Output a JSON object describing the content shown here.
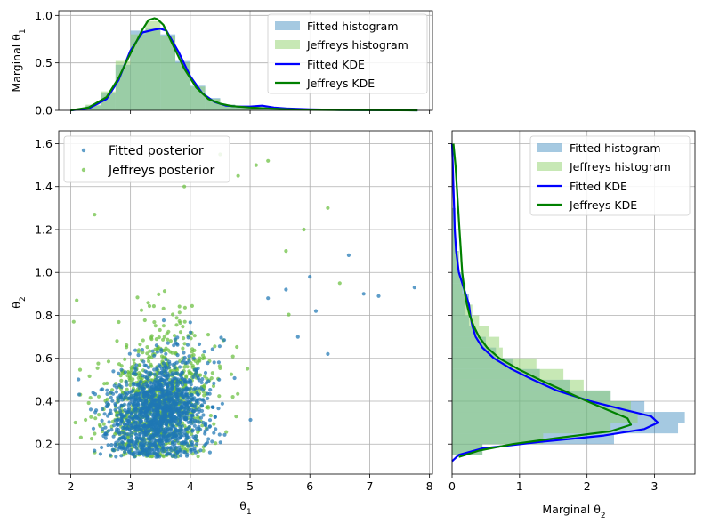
{
  "chart_data": [
    {
      "id": "top",
      "type": "area",
      "panel": "marginal-theta1",
      "ylabel": "Marginal θ1",
      "xlim": [
        1.8,
        8.05
      ],
      "ylim": [
        0,
        1.05
      ],
      "xticks": [
        2,
        3,
        4,
        5,
        6,
        7,
        8
      ],
      "xtick_labels_shown": false,
      "yticks": [
        0.0,
        0.5,
        1.0
      ],
      "ytick_labels": [
        "0.0",
        "0.5",
        "1.0"
      ],
      "legend": {
        "placement": "top-right",
        "entries": [
          {
            "label": "Fitted histogram",
            "kind": "patch",
            "color": "#1f77b4"
          },
          {
            "label": "Jeffreys histogram",
            "kind": "patch",
            "color": "#8fd16b"
          },
          {
            "label": "Fitted KDE",
            "kind": "line",
            "color": "#0000ff"
          },
          {
            "label": "Jeffreys KDE",
            "kind": "line",
            "color": "#008000"
          }
        ]
      },
      "histograms": [
        {
          "name": "Fitted histogram",
          "color": "#1f77b4",
          "bins": [
            2.0,
            2.25,
            2.5,
            2.75,
            3.0,
            3.25,
            3.5,
            3.75,
            4.0,
            4.25,
            4.5,
            4.75,
            5.0,
            5.25,
            5.5,
            5.75,
            6.0,
            6.5,
            7.0,
            7.5,
            7.8
          ],
          "values": [
            0.01,
            0.05,
            0.18,
            0.48,
            0.84,
            0.86,
            0.8,
            0.52,
            0.26,
            0.13,
            0.06,
            0.04,
            0.03,
            0.02,
            0.015,
            0.01,
            0.006,
            0.004,
            0.004,
            0.003
          ]
        },
        {
          "name": "Jeffreys histogram",
          "color": "#8fd16b",
          "bins": [
            2.0,
            2.25,
            2.5,
            2.75,
            3.0,
            3.25,
            3.5,
            3.75,
            4.0,
            4.25,
            4.5,
            4.75,
            5.0,
            5.25,
            5.5,
            5.75,
            6.0,
            6.5,
            7.0,
            7.5,
            7.8
          ],
          "values": [
            0.01,
            0.06,
            0.2,
            0.52,
            0.8,
            0.94,
            0.78,
            0.5,
            0.25,
            0.12,
            0.06,
            0.035,
            0.025,
            0.015,
            0.01,
            0.008,
            0.005,
            0.003,
            0.002,
            0.002
          ]
        }
      ],
      "series": [
        {
          "name": "Fitted KDE",
          "color": "#0000ff",
          "x": [
            2.0,
            2.3,
            2.6,
            2.8,
            3.0,
            3.2,
            3.4,
            3.5,
            3.6,
            3.8,
            4.0,
            4.2,
            4.4,
            4.6,
            4.8,
            5.0,
            5.2,
            5.4,
            5.6,
            6.0,
            6.5,
            7.0,
            7.5,
            7.8
          ],
          "y": [
            0.0,
            0.02,
            0.12,
            0.32,
            0.63,
            0.82,
            0.85,
            0.86,
            0.84,
            0.62,
            0.36,
            0.18,
            0.09,
            0.05,
            0.04,
            0.04,
            0.05,
            0.03,
            0.02,
            0.01,
            0.005,
            0.003,
            0.002,
            0.0
          ]
        },
        {
          "name": "Jeffreys KDE",
          "color": "#008000",
          "x": [
            2.0,
            2.3,
            2.6,
            2.8,
            3.0,
            3.2,
            3.3,
            3.4,
            3.45,
            3.55,
            3.7,
            3.9,
            4.1,
            4.3,
            4.5,
            4.7,
            5.0,
            5.3,
            5.6,
            6.0,
            6.5,
            7.0,
            7.5,
            7.8
          ],
          "y": [
            0.0,
            0.03,
            0.14,
            0.34,
            0.6,
            0.85,
            0.95,
            0.97,
            0.96,
            0.9,
            0.7,
            0.44,
            0.24,
            0.12,
            0.07,
            0.045,
            0.03,
            0.02,
            0.012,
            0.006,
            0.003,
            0.002,
            0.001,
            0.0
          ]
        }
      ]
    },
    {
      "id": "main",
      "type": "scatter",
      "panel": "joint-posterior",
      "xlabel": "θ1",
      "ylabel": "θ2",
      "xlim": [
        1.8,
        8.05
      ],
      "ylim": [
        0.06,
        1.66
      ],
      "xticks": [
        2,
        3,
        4,
        5,
        6,
        7,
        8
      ],
      "xtick_labels": [
        "2",
        "3",
        "4",
        "5",
        "6",
        "7",
        "8"
      ],
      "yticks": [
        0.2,
        0.4,
        0.6,
        0.8,
        1.0,
        1.2,
        1.4,
        1.6
      ],
      "ytick_labels": [
        "0.2",
        "0.4",
        "0.6",
        "0.8",
        "1.0",
        "1.2",
        "1.4",
        "1.6"
      ],
      "legend": {
        "placement": "top-left",
        "entries": [
          {
            "label": "Fitted posterior",
            "color": "#1f77b4"
          },
          {
            "label": "Jeffreys posterior",
            "color": "#6abf3f"
          }
        ]
      },
      "series": [
        {
          "name": "Jeffreys posterior",
          "color": "#6abf3f",
          "n": 900,
          "center": [
            3.45,
            0.38
          ],
          "spread": [
            0.55,
            0.19
          ],
          "seed": 11,
          "outliers": [
            [
              4.5,
              1.55
            ],
            [
              5.3,
              1.52
            ],
            [
              6.3,
              1.3
            ],
            [
              5.9,
              1.2
            ],
            [
              6.5,
              0.95
            ],
            [
              5.1,
              1.5
            ],
            [
              4.8,
              1.45
            ],
            [
              2.4,
              1.27
            ],
            [
              2.1,
              0.87
            ],
            [
              2.05,
              0.77
            ],
            [
              5.6,
              1.1
            ],
            [
              3.9,
              1.4
            ]
          ]
        },
        {
          "name": "Fitted posterior",
          "color": "#1f77b4",
          "n": 1400,
          "center": [
            3.45,
            0.34
          ],
          "spread": [
            0.5,
            0.15
          ],
          "seed": 7,
          "outliers": [
            [
              7.75,
              0.93
            ],
            [
              7.15,
              0.89
            ],
            [
              6.9,
              0.9
            ],
            [
              6.65,
              1.08
            ],
            [
              6.3,
              0.62
            ],
            [
              6.1,
              0.82
            ],
            [
              6.0,
              0.98
            ],
            [
              5.6,
              0.92
            ],
            [
              5.3,
              0.88
            ],
            [
              5.8,
              0.7
            ]
          ]
        }
      ]
    },
    {
      "id": "right",
      "type": "area",
      "panel": "marginal-theta2",
      "xlabel": "Marginal θ2",
      "xlim": [
        0,
        3.6
      ],
      "ylim": [
        0.06,
        1.66
      ],
      "xticks": [
        0,
        1,
        2,
        3
      ],
      "xtick_labels": [
        "0",
        "1",
        "2",
        "3"
      ],
      "yticks": [
        0.2,
        0.4,
        0.6,
        0.8,
        1.0,
        1.2,
        1.4,
        1.6
      ],
      "ytick_labels_shown": false,
      "legend": {
        "placement": "top-right",
        "entries": [
          {
            "label": "Fitted histogram",
            "kind": "patch",
            "color": "#1f77b4"
          },
          {
            "label": "Jeffreys histogram",
            "kind": "patch",
            "color": "#8fd16b"
          },
          {
            "label": "Fitted KDE",
            "kind": "line",
            "color": "#0000ff"
          },
          {
            "label": "Jeffreys KDE",
            "kind": "line",
            "color": "#008000"
          }
        ]
      },
      "histograms": [
        {
          "name": "Fitted histogram",
          "color": "#1f77b4",
          "bins": [
            0.15,
            0.2,
            0.25,
            0.3,
            0.35,
            0.4,
            0.45,
            0.5,
            0.55,
            0.6,
            0.65,
            0.7,
            0.75,
            0.8,
            0.85,
            0.9,
            0.95,
            1.0,
            1.1,
            1.3
          ],
          "values": [
            0.45,
            2.4,
            3.35,
            3.45,
            2.85,
            2.35,
            1.75,
            1.3,
            0.9,
            0.65,
            0.5,
            0.35,
            0.25,
            0.2,
            0.25,
            0.2,
            0.15,
            0.1,
            0.05
          ]
        },
        {
          "name": "Jeffreys histogram",
          "color": "#8fd16b",
          "bins": [
            0.15,
            0.2,
            0.25,
            0.3,
            0.35,
            0.4,
            0.45,
            0.5,
            0.55,
            0.6,
            0.65,
            0.7,
            0.75,
            0.8,
            0.85,
            0.9,
            0.95,
            1.0,
            1.1,
            1.3
          ],
          "values": [
            0.45,
            1.35,
            2.35,
            2.75,
            2.65,
            2.35,
            1.95,
            1.65,
            1.25,
            0.75,
            0.7,
            0.55,
            0.4,
            0.3,
            0.2,
            0.15,
            0.12,
            0.1,
            0.05
          ]
        }
      ],
      "series": [
        {
          "name": "Fitted KDE",
          "color": "#0000ff",
          "y": [
            0.12,
            0.15,
            0.18,
            0.21,
            0.24,
            0.27,
            0.3,
            0.33,
            0.36,
            0.4,
            0.45,
            0.5,
            0.55,
            0.6,
            0.65,
            0.7,
            0.75,
            0.8,
            0.85,
            0.9,
            0.95,
            1.0,
            1.05,
            1.1,
            1.2,
            1.3,
            1.4,
            1.5,
            1.6
          ],
          "x": [
            0.0,
            0.1,
            0.45,
            1.3,
            2.25,
            2.85,
            3.05,
            2.95,
            2.55,
            2.05,
            1.55,
            1.2,
            0.88,
            0.62,
            0.45,
            0.35,
            0.3,
            0.27,
            0.25,
            0.2,
            0.15,
            0.1,
            0.08,
            0.06,
            0.04,
            0.03,
            0.02,
            0.01,
            0.0
          ]
        },
        {
          "name": "Jeffreys KDE",
          "color": "#008000",
          "y": [
            0.14,
            0.17,
            0.2,
            0.23,
            0.26,
            0.29,
            0.32,
            0.36,
            0.4,
            0.45,
            0.5,
            0.55,
            0.6,
            0.65,
            0.7,
            0.75,
            0.8,
            0.85,
            0.9,
            0.95,
            1.0,
            1.05,
            1.1,
            1.2,
            1.3,
            1.4,
            1.5,
            1.6
          ],
          "x": [
            0.1,
            0.4,
            0.9,
            1.6,
            2.35,
            2.65,
            2.6,
            2.3,
            2.0,
            1.65,
            1.3,
            0.98,
            0.7,
            0.52,
            0.4,
            0.32,
            0.26,
            0.22,
            0.19,
            0.17,
            0.15,
            0.14,
            0.13,
            0.11,
            0.09,
            0.07,
            0.05,
            0.02
          ]
        }
      ]
    }
  ]
}
